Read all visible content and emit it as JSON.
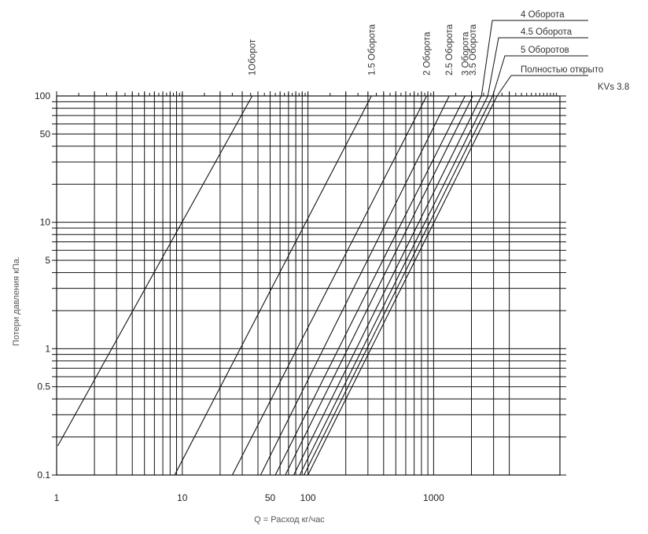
{
  "chart_data": {
    "type": "line",
    "title": "",
    "xlabel": "Q = Расход кг/час",
    "ylabel": "Потери давления кПа.",
    "x_scale": "log",
    "y_scale": "log",
    "xlim": [
      1,
      4000
    ],
    "ylim": [
      0.1,
      100
    ],
    "grid": true,
    "x_tick_labels": [
      {
        "value": 1,
        "label": "1"
      },
      {
        "value": 10,
        "label": "10"
      },
      {
        "value": 50,
        "label": "50"
      },
      {
        "value": 100,
        "label": "100"
      },
      {
        "value": 1000,
        "label": "1000"
      }
    ],
    "y_tick_labels": [
      {
        "value": 0.1,
        "label": "0.1"
      },
      {
        "value": 0.5,
        "label": "0.5"
      },
      {
        "value": 1,
        "label": "1"
      },
      {
        "value": 5,
        "label": "5"
      },
      {
        "value": 10,
        "label": "10"
      },
      {
        "value": 50,
        "label": "50"
      },
      {
        "value": 100,
        "label": "100"
      }
    ],
    "series": [
      {
        "name": "1Оборот",
        "x": [
          1.02,
          36
        ],
        "y": [
          0.17,
          100
        ]
      },
      {
        "name": "1.5 Оборота",
        "x": [
          8.7,
          320
        ],
        "y": [
          0.1,
          100
        ]
      },
      {
        "name": "2 Оборота",
        "x": [
          25,
          880
        ],
        "y": [
          0.1,
          100
        ]
      },
      {
        "name": "2.5 Оборота",
        "x": [
          42,
          1330
        ],
        "y": [
          0.1,
          100
        ]
      },
      {
        "name": "3 Оборота",
        "x": [
          55,
          1780
        ],
        "y": [
          0.1,
          100
        ]
      },
      {
        "name": "3.5 Оборота",
        "x": [
          66,
          2050
        ],
        "y": [
          0.1,
          100
        ]
      },
      {
        "name": "4 Оборота",
        "x": [
          77,
          2400
        ],
        "y": [
          0.1,
          100
        ]
      },
      {
        "name": "4.5 Оборота",
        "x": [
          86,
          2700
        ],
        "y": [
          0.1,
          100
        ]
      },
      {
        "name": "5 Оборотов",
        "x": [
          93,
          2950
        ],
        "y": [
          0.1,
          100
        ]
      },
      {
        "name": "Полностью открыто",
        "x": [
          100,
          3200
        ],
        "y": [
          0.1,
          100
        ]
      }
    ],
    "annotations": [
      "KVs 3.8"
    ]
  }
}
